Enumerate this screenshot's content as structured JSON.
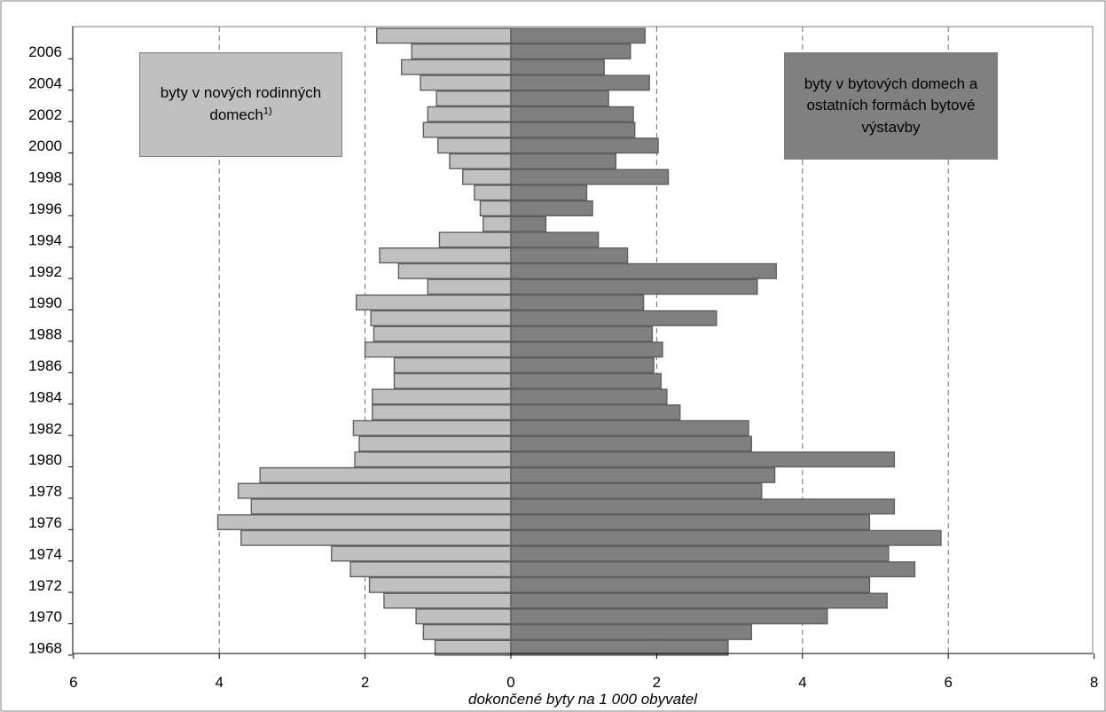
{
  "chart_data": {
    "type": "bar",
    "orientation": "horizontal-population-pyramid",
    "xlabel": "dokončené byty na 1 000 obyvatel",
    "x_ticks": [
      "6",
      "4",
      "2",
      "0",
      "2",
      "4",
      "6",
      "8"
    ],
    "y_ticks": [
      "2006",
      "2004",
      "2002",
      "2000",
      "1998",
      "1996",
      "1994",
      "1992",
      "1990",
      "1988",
      "1986",
      "1984",
      "1982",
      "1980",
      "1978",
      "1976",
      "1974",
      "1972",
      "1970",
      "1968"
    ],
    "xlim": [
      -6,
      8
    ],
    "grid": "vertical dashed lines at 4 and 2 (left) and 2, 4 and 6 (right)",
    "categories": [
      1968,
      1969,
      1970,
      1971,
      1972,
      1973,
      1974,
      1975,
      1976,
      1977,
      1978,
      1979,
      1980,
      1981,
      1982,
      1983,
      1984,
      1985,
      1986,
      1987,
      1988,
      1989,
      1990,
      1991,
      1992,
      1993,
      1994,
      1995,
      1996,
      1997,
      1998,
      1999,
      2000,
      2001,
      2002,
      2003,
      2004,
      2005,
      2006,
      2007
    ],
    "series": [
      {
        "name": "byty v nových rodinných domech",
        "name_superscript": "1)",
        "side": "left",
        "color": "#c0c0c0",
        "values": [
          1.04,
          1.2,
          1.3,
          1.74,
          1.94,
          2.2,
          2.46,
          3.7,
          4.02,
          3.56,
          3.74,
          3.44,
          2.14,
          2.08,
          2.16,
          1.9,
          1.9,
          1.6,
          1.6,
          2.0,
          1.88,
          1.92,
          2.12,
          1.14,
          1.54,
          1.8,
          0.98,
          0.38,
          0.42,
          0.5,
          0.66,
          0.84,
          1.0,
          1.2,
          1.14,
          1.02,
          1.24,
          1.5,
          1.36,
          1.84
        ]
      },
      {
        "name": "byty v bytových domech a ostatních formách bytové výstavby",
        "side": "right",
        "color": "#808080",
        "values": [
          2.98,
          3.3,
          4.34,
          5.16,
          4.92,
          5.54,
          5.18,
          5.9,
          4.92,
          5.26,
          3.44,
          3.62,
          5.26,
          3.3,
          3.26,
          2.32,
          2.14,
          2.06,
          1.96,
          2.08,
          1.94,
          2.82,
          1.82,
          3.38,
          3.64,
          1.6,
          1.2,
          0.48,
          1.12,
          1.04,
          2.16,
          1.44,
          2.02,
          1.7,
          1.68,
          1.34,
          1.9,
          1.28,
          1.64,
          1.84
        ]
      }
    ]
  }
}
